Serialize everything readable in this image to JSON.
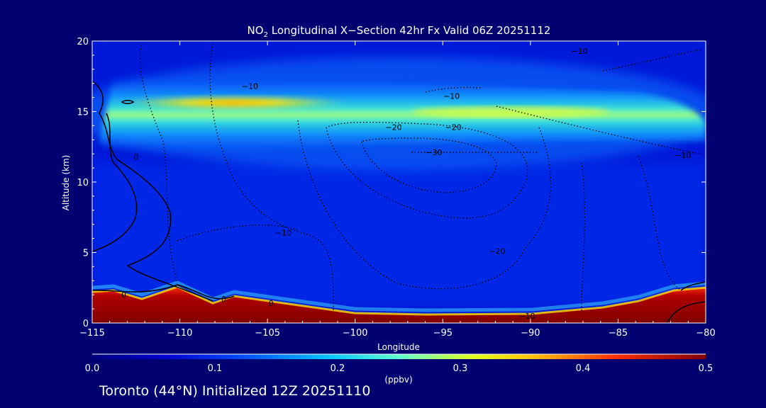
{
  "title": {
    "species": "NO",
    "species_sub": "2",
    "rest": " Longitudinal X−Section 42hr  Fx Valid 06Z 20251112"
  },
  "footer": "Toronto (44°N) Initialized 12Z 20251110",
  "chart_data": {
    "type": "heatmap",
    "xlabel": "Longitude",
    "ylabel": "Altitude (km)",
    "xlim": [
      -115,
      -80
    ],
    "ylim": [
      0,
      20
    ],
    "xticks": [
      -115,
      -110,
      -105,
      -100,
      -95,
      -90,
      -85,
      -80
    ],
    "xtick_labels": [
      "−115",
      "−110",
      "−105",
      "−100",
      "−95",
      "−90",
      "−85",
      "−80"
    ],
    "yticks": [
      0,
      5,
      10,
      15,
      20
    ],
    "ytick_labels": [
      "0",
      "5",
      "10",
      "15",
      "20"
    ],
    "colorbar": {
      "label": "(ppbv)",
      "min": 0.0,
      "max": 0.5,
      "tick_values": [
        0.0,
        0.1,
        0.2,
        0.3,
        0.4,
        0.5
      ],
      "tick_labels": [
        "0.0",
        "0.1",
        "0.2",
        "0.3",
        "0.4",
        "0.5"
      ]
    },
    "surface_km": [
      [
        -115,
        2.3
      ],
      [
        -113,
        2.5
      ],
      [
        -112,
        1.7
      ],
      [
        -110,
        2.6
      ],
      [
        -108,
        1.5
      ],
      [
        -107,
        2.0
      ],
      [
        -106,
        1.6
      ],
      [
        -105,
        1.5
      ],
      [
        -104,
        1.6
      ],
      [
        -100,
        0.6
      ],
      [
        -95,
        0.6
      ],
      [
        -90,
        0.6
      ],
      [
        -87,
        0.6
      ],
      [
        -85,
        1.2
      ],
      [
        -82,
        1.5
      ],
      [
        -80,
        2.6
      ]
    ],
    "features": [
      {
        "lon": [
          -113,
          -80
        ],
        "alt_center": 15.4,
        "alt_halfwidth": 1.8,
        "peak_ppbv": 0.33,
        "description": "upper-level NO2 band"
      },
      {
        "lon": [
          -115,
          -80
        ],
        "alt_center": 0.8,
        "peak_ppbv": 0.5,
        "description": "surface layer"
      }
    ],
    "contour_labels": [
      {
        "text": "−10",
        "lon": -106,
        "alt": 16.8
      },
      {
        "text": "−10",
        "lon": -94.5,
        "alt": 16.1
      },
      {
        "text": "−10",
        "lon": -87.2,
        "alt": 19.3
      },
      {
        "text": "−10",
        "lon": -81.3,
        "alt": 11.9
      },
      {
        "text": "−20",
        "lon": -97.8,
        "alt": 13.9
      },
      {
        "text": "−20",
        "lon": -94.4,
        "alt": 13.9
      },
      {
        "text": "−30",
        "lon": -95.5,
        "alt": 12.1
      },
      {
        "text": "−10",
        "lon": -104.1,
        "alt": 6.4
      },
      {
        "text": "−20",
        "lon": -91.9,
        "alt": 5.1
      },
      {
        "text": "−10",
        "lon": -90.2,
        "alt": 0.5
      },
      {
        "text": "0",
        "lon": -113.2,
        "alt": 2.0
      },
      {
        "text": "0",
        "lon": -107.5,
        "alt": 1.7
      },
      {
        "text": "0",
        "lon": -104.8,
        "alt": 1.4
      },
      {
        "text": "0",
        "lon": -112.5,
        "alt": 11.8
      }
    ]
  }
}
